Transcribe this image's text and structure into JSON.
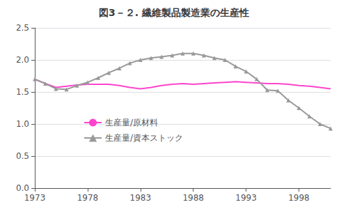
{
  "chart_data": {
    "type": "line",
    "title": "図3－２. 繊維製品製造業の生産性",
    "x": [
      1973,
      1974,
      1975,
      1976,
      1977,
      1978,
      1979,
      1980,
      1981,
      1982,
      1983,
      1984,
      1985,
      1986,
      1987,
      1988,
      1989,
      1990,
      1991,
      1992,
      1993,
      1994,
      1995,
      1996,
      1997,
      1998,
      1999,
      2000,
      2001
    ],
    "series": [
      {
        "name": "生産量/原材料",
        "color": "#ff44cc",
        "marker": "none",
        "values": [
          1.7,
          1.63,
          1.57,
          1.59,
          1.61,
          1.62,
          1.62,
          1.62,
          1.6,
          1.57,
          1.55,
          1.57,
          1.6,
          1.62,
          1.63,
          1.62,
          1.63,
          1.64,
          1.65,
          1.66,
          1.65,
          1.64,
          1.63,
          1.63,
          1.62,
          1.6,
          1.59,
          1.57,
          1.55
        ]
      },
      {
        "name": "生産量/資本ストック",
        "color": "#999999",
        "marker": "triangle",
        "values": [
          1.7,
          1.63,
          1.55,
          1.54,
          1.6,
          1.65,
          1.72,
          1.8,
          1.87,
          1.95,
          2.0,
          2.03,
          2.05,
          2.07,
          2.1,
          2.1,
          2.07,
          2.03,
          2.0,
          1.9,
          1.82,
          1.7,
          1.53,
          1.52,
          1.37,
          1.25,
          1.12,
          1.0,
          0.93
        ]
      }
    ],
    "xlim": [
      1973,
      2001
    ],
    "xticks": [
      1973,
      1978,
      1983,
      1988,
      1993,
      1998
    ],
    "ylim": [
      0,
      2.5
    ],
    "yticks": [
      {
        "value": 0,
        "label": "0.0"
      },
      0.5,
      {
        "value": 1.0,
        "label": "1.0"
      },
      1.5,
      {
        "value": 2.0,
        "label": "2.0"
      },
      2.5
    ],
    "grid": true,
    "legend": "left"
  }
}
